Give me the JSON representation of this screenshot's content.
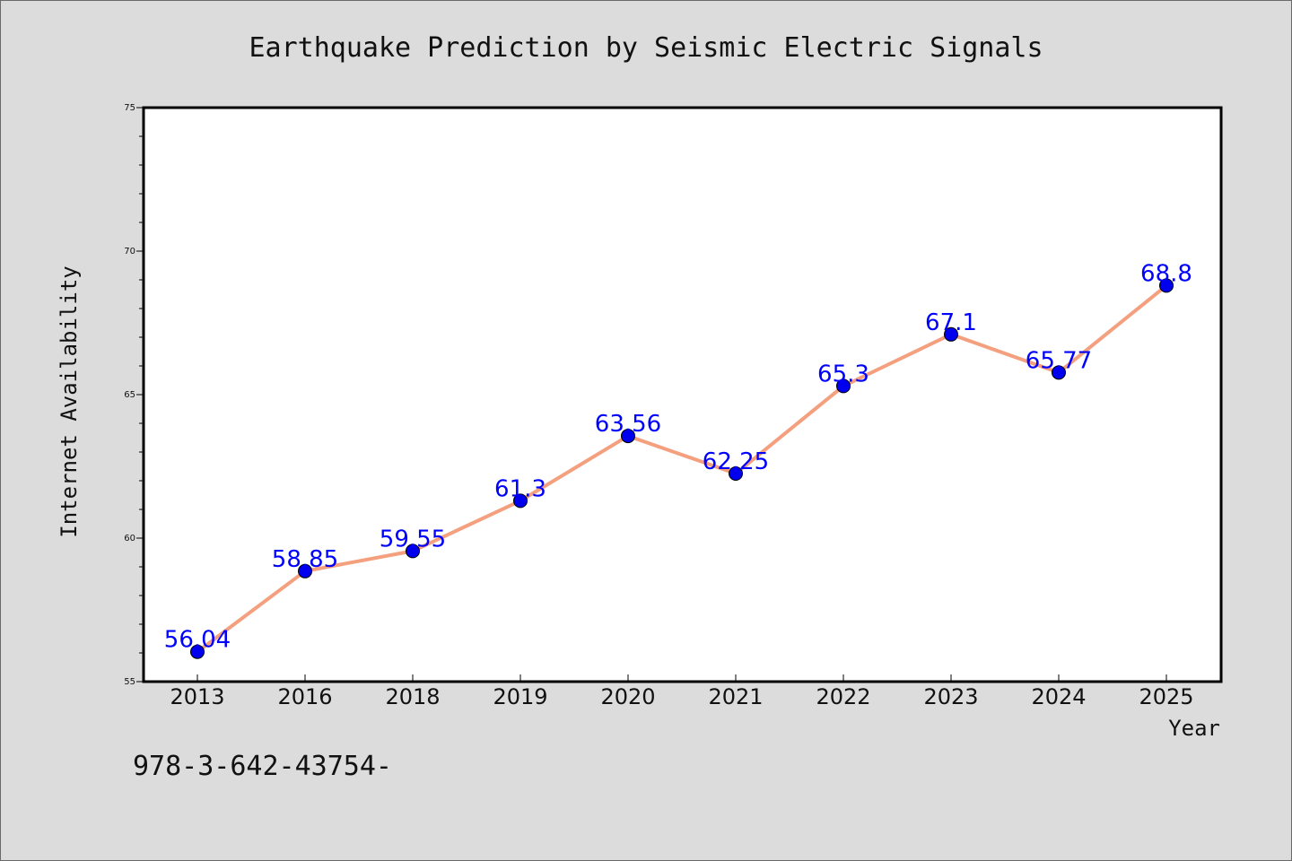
{
  "chart_data": {
    "type": "line",
    "title": "Earthquake Prediction by Seismic Electric Signals",
    "xlabel": "Year",
    "ylabel": "Internet Availability",
    "categories": [
      "2013",
      "2016",
      "2018",
      "2019",
      "2020",
      "2021",
      "2022",
      "2023",
      "2024",
      "2025"
    ],
    "series": [
      {
        "values": [
          56.04,
          58.85,
          59.55,
          61.3,
          63.56,
          62.25,
          65.3,
          67.1,
          65.77,
          68.8
        ],
        "data_labels": [
          "56.04",
          "58.85",
          "59.55",
          "61.3",
          "63.56",
          "62.25",
          "65.3",
          "67.1",
          "65.77",
          "68.8"
        ],
        "line_color": "#f4a07f",
        "marker_color": "#0000ee"
      }
    ],
    "ylim": [
      55,
      75
    ],
    "yticks": [
      "55",
      "60",
      "65",
      "70",
      "75"
    ],
    "grid": false,
    "legend": "none",
    "label_color": "#0000ff"
  },
  "footer": {
    "text": "978-3-642-43754-"
  },
  "colors": {
    "background": "#dcdcdc",
    "plot_background": "#ffffff"
  }
}
